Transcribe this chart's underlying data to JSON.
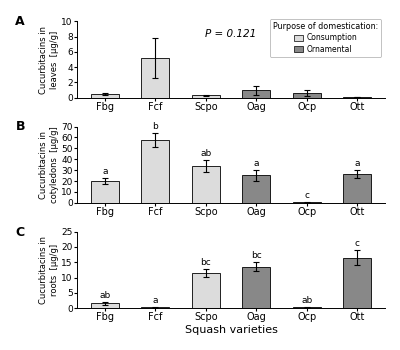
{
  "categories": [
    "Fbg",
    "Fcf",
    "Scpo",
    "Oag",
    "Ocp",
    "Ott"
  ],
  "colors": {
    "consumption": "#dcdcdc",
    "ornamental": "#888888"
  },
  "bar_colors_A": [
    "consumption",
    "consumption",
    "consumption",
    "ornamental",
    "ornamental",
    "ornamental"
  ],
  "bar_colors_B": [
    "consumption",
    "consumption",
    "consumption",
    "ornamental",
    "ornamental",
    "ornamental"
  ],
  "bar_colors_C": [
    "consumption",
    "consumption",
    "consumption",
    "ornamental",
    "ornamental",
    "ornamental"
  ],
  "values_A": [
    0.45,
    5.2,
    0.3,
    0.95,
    0.65,
    0.05
  ],
  "errors_A": [
    0.15,
    2.6,
    0.1,
    0.55,
    0.4,
    0.02
  ],
  "values_B": [
    20.0,
    58.0,
    34.0,
    25.5,
    0.5,
    26.5
  ],
  "errors_B": [
    2.5,
    6.5,
    5.5,
    5.0,
    0.3,
    3.5
  ],
  "values_C": [
    1.5,
    0.2,
    11.5,
    13.5,
    0.3,
    16.5
  ],
  "errors_C": [
    0.5,
    0.08,
    1.2,
    1.5,
    0.15,
    2.5
  ],
  "ylim_A": [
    0,
    10
  ],
  "ylim_B": [
    0,
    70
  ],
  "ylim_C": [
    0,
    25
  ],
  "yticks_A": [
    0,
    2,
    4,
    6,
    8,
    10
  ],
  "yticks_B": [
    0,
    10,
    20,
    30,
    40,
    50,
    60,
    70
  ],
  "yticks_C": [
    0,
    5,
    10,
    15,
    20,
    25
  ],
  "ylabel_A": "Cucurbitacins in\nleaves  [μg/g]",
  "ylabel_B": "Cucurbitacins in\ncotyledons  [μg/g]",
  "ylabel_C": "Cucurbitacins in\nroots  [μg/g]",
  "xlabel": "Squash varieties",
  "pvalue_A": "P = 0.121",
  "letters_A": [
    "",
    "",
    "",
    "",
    "",
    ""
  ],
  "letters_B": [
    "a",
    "b",
    "ab",
    "a",
    "c",
    "a"
  ],
  "letters_C": [
    "ab",
    "a",
    "bc",
    "bc",
    "ab",
    "c"
  ],
  "panel_labels": [
    "A",
    "B",
    "C"
  ],
  "legend_labels": [
    "Consumption",
    "Ornamental"
  ],
  "legend_title": "Purpose of domestication:",
  "background_color": "#ffffff",
  "figure_width": 4.0,
  "figure_height": 3.5
}
